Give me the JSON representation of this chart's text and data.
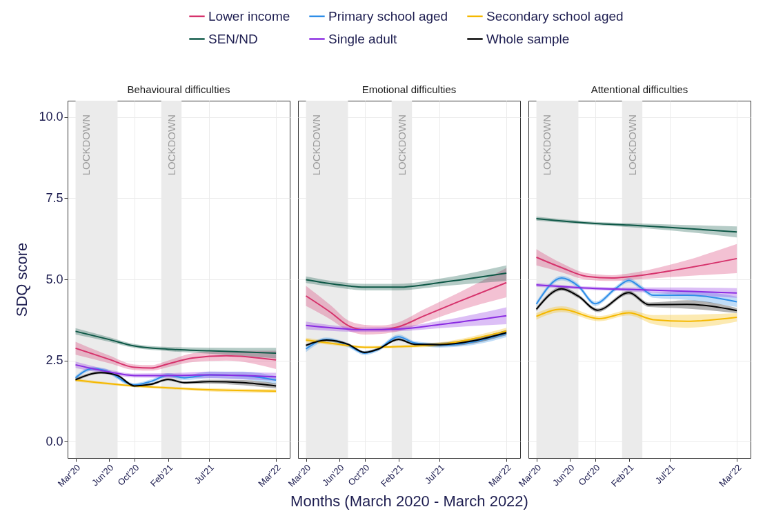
{
  "chart_data": [
    {
      "type": "line",
      "title": "Behavioural difficulties",
      "ylabel": "SDQ score",
      "legend": "top",
      "grid": true,
      "xlim": [
        "2020-02",
        "2022-04-20"
      ],
      "xticks": [
        {
          "value": "2020-03",
          "label": "Mar'20"
        },
        {
          "value": "2020-06-30",
          "label": "Jun'20"
        },
        {
          "value": "2020-10",
          "label": "Oct'20"
        },
        {
          "value": "2021-02",
          "label": "Feb'21"
        },
        {
          "value": "2021-07",
          "label": "Jul'21"
        },
        {
          "value": "2022-03",
          "label": "Mar'22"
        }
      ],
      "ylim": [
        -0.5,
        10.5
      ],
      "yticks": [
        {
          "value": 0,
          "label": "0.0"
        },
        {
          "value": 2.5,
          "label": "2.5"
        },
        {
          "value": 5,
          "label": "5.0"
        },
        {
          "value": 7.5,
          "label": "7.5"
        },
        {
          "value": 10,
          "label": "10.0"
        }
      ],
      "bands": [
        {
          "axis": "x",
          "from": "2020-03",
          "to": "2020-08",
          "label": "LOCKDOWN",
          "color": "#ebebeb"
        },
        {
          "axis": "x",
          "from": "2021-01-07",
          "to": "2021-03-22",
          "label": "LOCKDOWN",
          "color": "#ebebeb"
        }
      ],
      "series": [
        {
          "name": "Lower income",
          "color": "#d6336c",
          "x": [
            "2020-03",
            "2020-07",
            "2020-10",
            "2020-12",
            "2021-02",
            "2021-05",
            "2021-09",
            "2022-03"
          ],
          "values": [
            2.88,
            2.54,
            2.29,
            2.27,
            2.4,
            2.58,
            2.65,
            2.52
          ],
          "lower": [
            2.68,
            2.42,
            2.21,
            2.19,
            2.3,
            2.45,
            2.5,
            2.24
          ],
          "upper": [
            3.08,
            2.66,
            2.38,
            2.36,
            2.5,
            2.72,
            2.8,
            2.8
          ]
        },
        {
          "name": "Primary school aged",
          "color": "#2e8ee8",
          "x": [
            "2020-03",
            "2020-05",
            "2020-06-15",
            "2020-10",
            "2020-12",
            "2021-02",
            "2021-04",
            "2021-07",
            "2021-11",
            "2022-03"
          ],
          "values": [
            1.97,
            2.25,
            2.2,
            1.75,
            1.86,
            2.05,
            1.97,
            2.06,
            2.04,
            1.9
          ],
          "lower": [
            1.91,
            2.19,
            2.14,
            1.69,
            1.8,
            1.99,
            1.9,
            1.96,
            1.92,
            1.78
          ],
          "upper": [
            2.03,
            2.31,
            2.26,
            1.81,
            1.92,
            2.11,
            2.04,
            2.16,
            2.16,
            2.02
          ]
        },
        {
          "name": "Secondary school aged",
          "color": "#f5b800",
          "x": [
            "2020-03",
            "2020-10",
            "2021-02",
            "2021-07",
            "2022-03"
          ],
          "values": [
            1.9,
            1.72,
            1.66,
            1.6,
            1.56
          ],
          "lower": [
            1.85,
            1.68,
            1.62,
            1.55,
            1.5
          ],
          "upper": [
            1.95,
            1.76,
            1.7,
            1.65,
            1.62
          ]
        },
        {
          "name": "SEN/ND",
          "color": "#0d5746",
          "x": [
            "2020-03",
            "2020-07",
            "2020-10",
            "2021-02",
            "2021-07",
            "2022-03"
          ],
          "values": [
            3.4,
            3.15,
            2.95,
            2.85,
            2.8,
            2.73
          ],
          "lower": [
            3.3,
            3.08,
            2.89,
            2.79,
            2.71,
            2.57
          ],
          "upper": [
            3.5,
            3.22,
            3.01,
            2.92,
            2.9,
            2.89
          ]
        },
        {
          "name": "Single adult",
          "color": "#8a2be2",
          "x": [
            "2020-03",
            "2020-07",
            "2020-10",
            "2021-02",
            "2021-07",
            "2022-03"
          ],
          "values": [
            2.37,
            2.15,
            2.04,
            2.04,
            2.06,
            2.0
          ],
          "lower": [
            2.27,
            2.08,
            1.98,
            1.97,
            1.96,
            1.88
          ],
          "upper": [
            2.47,
            2.22,
            2.1,
            2.11,
            2.16,
            2.12
          ]
        },
        {
          "name": "Whole sample",
          "color": "#000000",
          "x": [
            "2020-03",
            "2020-06",
            "2020-08",
            "2020-10",
            "2020-12",
            "2021-02",
            "2021-04",
            "2021-07",
            "2021-11",
            "2022-03"
          ],
          "values": [
            1.91,
            2.13,
            2.04,
            1.72,
            1.77,
            1.92,
            1.82,
            1.85,
            1.82,
            1.72
          ],
          "lower": [
            1.86,
            2.09,
            2.0,
            1.68,
            1.73,
            1.88,
            1.78,
            1.79,
            1.74,
            1.64
          ],
          "upper": [
            1.96,
            2.17,
            2.08,
            1.76,
            1.81,
            1.96,
            1.86,
            1.91,
            1.9,
            1.8
          ]
        }
      ]
    },
    {
      "type": "line",
      "title": "Emotional difficulties",
      "xlabel": "Months (March 2020 - March 2022)",
      "grid": true,
      "tick_labels": "x",
      "xlim": [
        "2020-02",
        "2022-04-20"
      ],
      "xticks": [
        {
          "value": "2020-03",
          "label": "Mar'20"
        },
        {
          "value": "2020-06-30",
          "label": "Jun'20"
        },
        {
          "value": "2020-10",
          "label": "Oct'20"
        },
        {
          "value": "2021-02",
          "label": "Feb'21"
        },
        {
          "value": "2021-07",
          "label": "Jul'21"
        },
        {
          "value": "2022-03",
          "label": "Mar'22"
        }
      ],
      "ylim": [
        -0.5,
        10.5
      ],
      "yticks": [
        0,
        2.5,
        5,
        7.5,
        10
      ],
      "bands": [
        {
          "axis": "x",
          "from": "2020-03",
          "to": "2020-08",
          "label": "LOCKDOWN",
          "color": "#ebebeb"
        },
        {
          "axis": "x",
          "from": "2021-01-07",
          "to": "2021-03-22",
          "label": "LOCKDOWN",
          "color": "#ebebeb"
        }
      ],
      "series": [
        {
          "name": "Lower income",
          "color": "#d6336c",
          "x": [
            "2020-03",
            "2020-06",
            "2020-08",
            "2020-10",
            "2020-12",
            "2021-02",
            "2021-05",
            "2021-09",
            "2022-03"
          ],
          "values": [
            4.49,
            3.97,
            3.58,
            3.45,
            3.45,
            3.54,
            3.86,
            4.29,
            4.9
          ],
          "lower": [
            4.18,
            3.75,
            3.42,
            3.3,
            3.32,
            3.4,
            3.66,
            4.02,
            4.45
          ],
          "upper": [
            4.8,
            4.19,
            3.74,
            3.6,
            3.58,
            3.68,
            4.06,
            4.56,
            5.35
          ]
        },
        {
          "name": "Primary school aged",
          "color": "#2e8ee8",
          "x": [
            "2020-03",
            "2020-05-15",
            "2020-08",
            "2020-10",
            "2020-11-15",
            "2021-02",
            "2021-04",
            "2021-07",
            "2021-11",
            "2022-03"
          ],
          "values": [
            2.86,
            3.15,
            2.97,
            2.73,
            2.83,
            3.23,
            3.04,
            2.97,
            3.08,
            3.33
          ],
          "lower": [
            2.76,
            3.09,
            2.91,
            2.67,
            2.77,
            3.16,
            2.98,
            2.9,
            2.98,
            3.22
          ],
          "upper": [
            2.96,
            3.21,
            3.03,
            2.79,
            2.89,
            3.3,
            3.1,
            3.04,
            3.18,
            3.44
          ]
        },
        {
          "name": "Secondary school aged",
          "color": "#f5b800",
          "x": [
            "2020-03",
            "2020-07",
            "2020-10",
            "2021-02",
            "2021-07",
            "2022-03"
          ],
          "values": [
            3.13,
            3.0,
            2.91,
            2.93,
            3.0,
            3.41
          ],
          "lower": [
            3.06,
            2.95,
            2.87,
            2.89,
            2.94,
            3.31
          ],
          "upper": [
            3.2,
            3.05,
            2.95,
            2.97,
            3.06,
            3.51
          ]
        },
        {
          "name": "SEN/ND",
          "color": "#0d5746",
          "x": [
            "2020-03",
            "2020-07",
            "2020-10",
            "2021-02",
            "2021-07",
            "2022-03"
          ],
          "values": [
            4.99,
            4.83,
            4.76,
            4.76,
            4.9,
            5.19
          ],
          "lower": [
            4.89,
            4.74,
            4.66,
            4.66,
            4.78,
            4.95
          ],
          "upper": [
            5.09,
            4.92,
            4.86,
            4.86,
            5.02,
            5.43
          ]
        },
        {
          "name": "Single adult",
          "color": "#8a2be2",
          "x": [
            "2020-03",
            "2020-10",
            "2021-02",
            "2021-07",
            "2022-03"
          ],
          "values": [
            3.58,
            3.45,
            3.47,
            3.61,
            3.88
          ],
          "lower": [
            3.46,
            3.38,
            3.4,
            3.5,
            3.62
          ],
          "upper": [
            3.7,
            3.52,
            3.54,
            3.72,
            4.14
          ]
        },
        {
          "name": "Whole sample",
          "color": "#000000",
          "x": [
            "2020-03",
            "2020-05-15",
            "2020-08",
            "2020-10",
            "2020-11-15",
            "2021-02",
            "2021-04",
            "2021-07",
            "2021-11",
            "2022-03"
          ],
          "values": [
            2.97,
            3.13,
            3.0,
            2.75,
            2.84,
            3.15,
            3.0,
            2.99,
            3.11,
            3.36
          ],
          "lower": [
            2.93,
            3.09,
            2.96,
            2.71,
            2.8,
            3.11,
            2.96,
            2.93,
            3.03,
            3.28
          ],
          "upper": [
            3.01,
            3.17,
            3.04,
            2.79,
            2.88,
            3.19,
            3.04,
            3.05,
            3.19,
            3.44
          ]
        }
      ]
    },
    {
      "type": "line",
      "title": "Attentional difficulties",
      "grid": true,
      "tick_labels": "x",
      "xlim": [
        "2020-02",
        "2022-04-20"
      ],
      "xticks": [
        {
          "value": "2020-03",
          "label": "Mar'20"
        },
        {
          "value": "2020-06-30",
          "label": "Jun'20"
        },
        {
          "value": "2020-10",
          "label": "Oct'20"
        },
        {
          "value": "2021-02",
          "label": "Feb'21"
        },
        {
          "value": "2021-07",
          "label": "Jul'21"
        },
        {
          "value": "2022-03",
          "label": "Mar'22"
        }
      ],
      "ylim": [
        -0.5,
        10.5
      ],
      "yticks": [
        0,
        2.5,
        5,
        7.5,
        10
      ],
      "bands": [
        {
          "axis": "x",
          "from": "2020-03",
          "to": "2020-08",
          "label": "LOCKDOWN",
          "color": "#ebebeb"
        },
        {
          "axis": "x",
          "from": "2021-01-07",
          "to": "2021-03-22",
          "label": "LOCKDOWN",
          "color": "#ebebeb"
        }
      ],
      "series": [
        {
          "name": "Lower income",
          "color": "#d6336c",
          "x": [
            "2020-03",
            "2020-06",
            "2020-09",
            "2020-12",
            "2021-02",
            "2021-07",
            "2022-03"
          ],
          "values": [
            5.68,
            5.36,
            5.09,
            5.04,
            5.08,
            5.26,
            5.64
          ],
          "lower": [
            5.43,
            5.22,
            4.99,
            4.95,
            4.98,
            5.07,
            5.19
          ],
          "upper": [
            5.93,
            5.5,
            5.19,
            5.13,
            5.18,
            5.45,
            6.09
          ]
        },
        {
          "name": "Primary school aged",
          "color": "#2e8ee8",
          "x": [
            "2020-03",
            "2020-06",
            "2020-08",
            "2020-10",
            "2020-12-15",
            "2021-02",
            "2021-03-15",
            "2021-05",
            "2021-09",
            "2022-03"
          ],
          "values": [
            4.24,
            5.04,
            4.79,
            4.25,
            4.72,
            4.97,
            4.76,
            4.51,
            4.51,
            4.31
          ],
          "lower": [
            4.17,
            4.97,
            4.72,
            4.18,
            4.65,
            4.9,
            4.69,
            4.43,
            4.37,
            4.15
          ],
          "upper": [
            4.31,
            5.11,
            4.86,
            4.32,
            4.79,
            5.04,
            4.83,
            4.59,
            4.65,
            4.47
          ]
        },
        {
          "name": "Secondary school aged",
          "color": "#f5b800",
          "x": [
            "2020-03",
            "2020-06",
            "2020-10-15",
            "2021-02",
            "2021-05",
            "2021-09",
            "2022-03"
          ],
          "values": [
            3.86,
            4.08,
            3.79,
            3.97,
            3.76,
            3.71,
            3.83
          ],
          "lower": [
            3.76,
            3.99,
            3.71,
            3.89,
            3.62,
            3.51,
            3.7
          ],
          "upper": [
            3.96,
            4.17,
            3.87,
            4.05,
            3.9,
            3.91,
            3.96
          ]
        },
        {
          "name": "SEN/ND",
          "color": "#0d5746",
          "x": [
            "2020-03",
            "2020-10",
            "2021-02",
            "2021-07",
            "2022-03"
          ],
          "values": [
            6.87,
            6.72,
            6.67,
            6.6,
            6.46
          ],
          "lower": [
            6.81,
            6.67,
            6.61,
            6.51,
            6.29
          ],
          "upper": [
            6.93,
            6.77,
            6.73,
            6.69,
            6.63
          ]
        },
        {
          "name": "Single adult",
          "color": "#8a2be2",
          "x": [
            "2020-03",
            "2020-10",
            "2021-02",
            "2021-07",
            "2022-03"
          ],
          "values": [
            4.83,
            4.72,
            4.69,
            4.65,
            4.58
          ],
          "lower": [
            4.77,
            4.67,
            4.63,
            4.55,
            4.43
          ],
          "upper": [
            4.89,
            4.77,
            4.75,
            4.75,
            4.73
          ]
        },
        {
          "name": "Whole sample",
          "color": "#000000",
          "x": [
            "2020-03",
            "2020-06",
            "2020-08",
            "2020-10-10",
            "2021-02",
            "2021-04-15",
            "2021-09",
            "2022-03"
          ],
          "values": [
            4.08,
            4.71,
            4.48,
            4.05,
            4.59,
            4.22,
            4.23,
            4.04
          ],
          "lower": [
            4.02,
            4.65,
            4.42,
            3.99,
            4.53,
            4.15,
            4.1,
            3.96
          ],
          "upper": [
            4.14,
            4.77,
            4.54,
            4.11,
            4.65,
            4.29,
            4.36,
            4.12
          ]
        }
      ]
    }
  ]
}
